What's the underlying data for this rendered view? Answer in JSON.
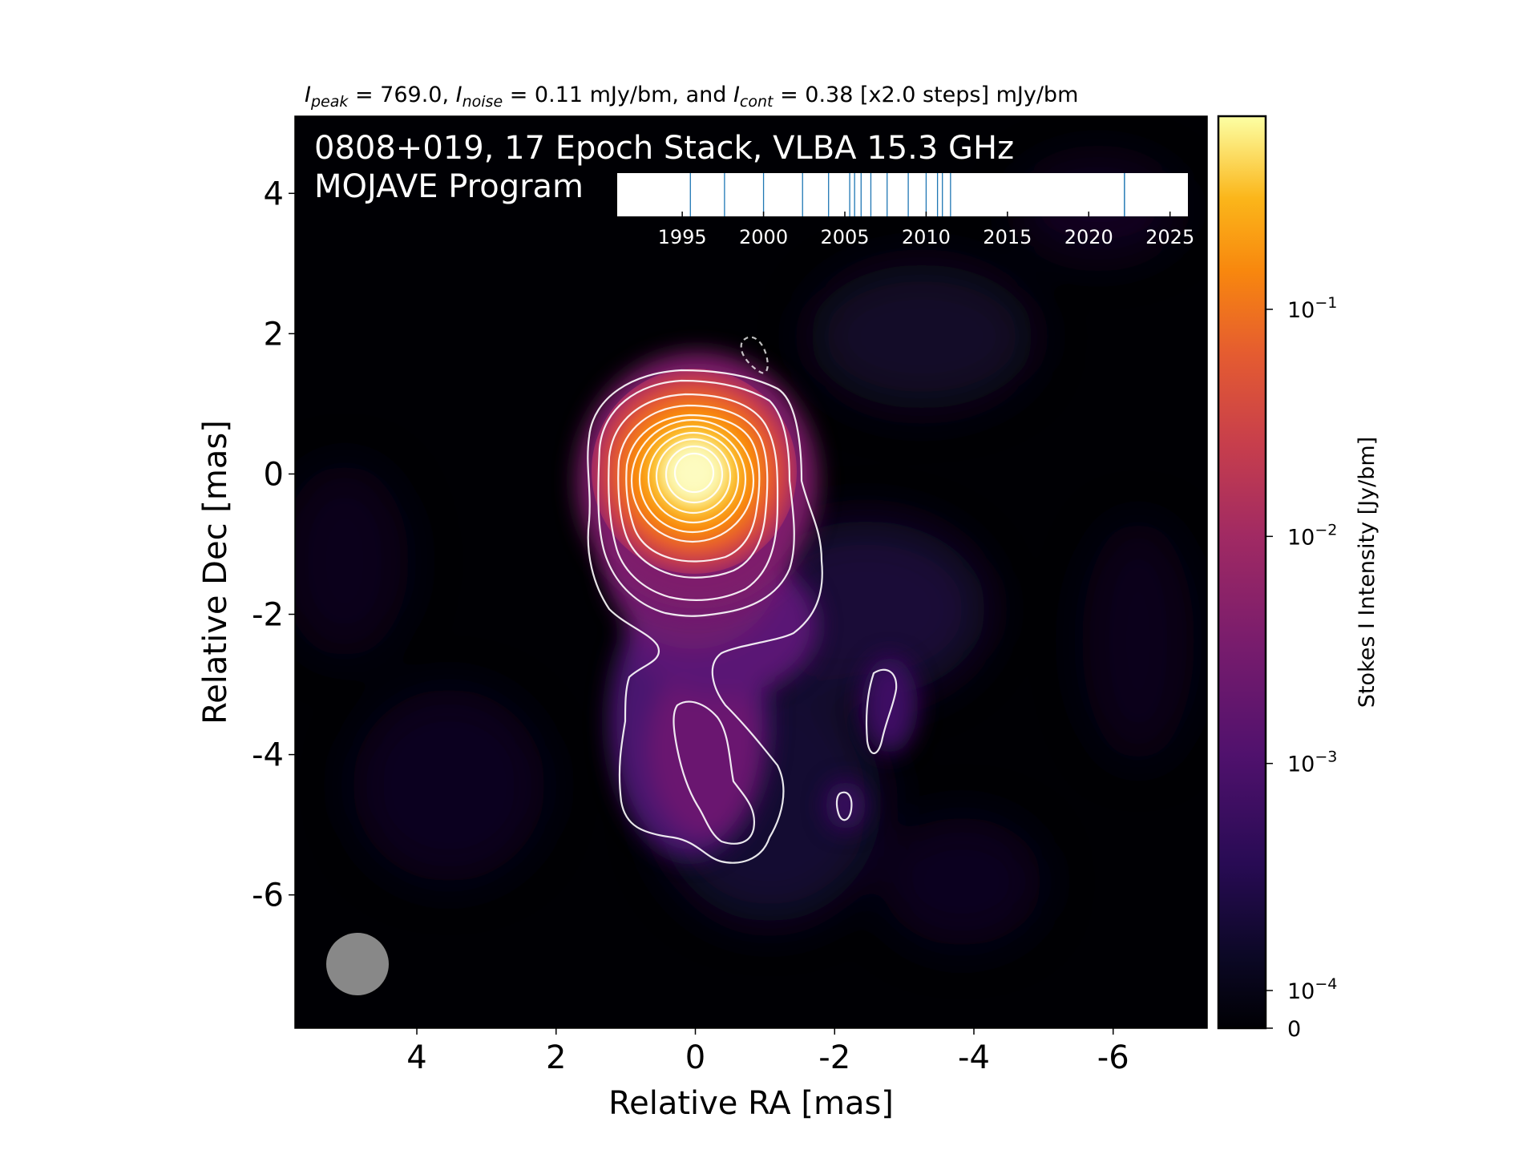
{
  "chart_data": {
    "type": "heatmap",
    "header": {
      "peak_symbol": "I",
      "peak_sub": "peak",
      "peak_text": " = 769.0, ",
      "noise_symbol": "I",
      "noise_sub": "noise",
      "noise_text": " = 0.11 mJy/bm, and ",
      "cont_symbol": "I",
      "cont_sub": "cont",
      "cont_text": " = 0.38 [x2.0 steps] mJy/bm"
    },
    "title_line1": "0808+019, 17 Epoch Stack, VLBA 15.3 GHz",
    "title_line2": "MOJAVE Program",
    "xlabel": "Relative RA [mas]",
    "ylabel": "Relative Dec [mas]",
    "xlim": [
      5.75,
      -7.35
    ],
    "ylim": [
      -7.9,
      5.1
    ],
    "x_ticks": [
      4,
      2,
      0,
      -2,
      -4,
      -6
    ],
    "x_tick_labels": [
      "4",
      "2",
      "0",
      "-2",
      "-4",
      "-6"
    ],
    "y_ticks": [
      4,
      2,
      0,
      -2,
      -4,
      -6
    ],
    "y_tick_labels": [
      "4",
      "2",
      "0",
      "-2",
      "-4",
      "-6"
    ],
    "colorbar": {
      "label": "Stokes I Intensity [Jy/bm]",
      "colormap": "inferno",
      "scale": "log",
      "ticks": [
        {
          "value": 0.1,
          "label_base": "10",
          "label_exp": "−1"
        },
        {
          "value": 0.01,
          "label_base": "10",
          "label_exp": "−2"
        },
        {
          "value": 0.001,
          "label_base": "10",
          "label_exp": "−3"
        },
        {
          "value": 0.0001,
          "label_base": "10",
          "label_exp": "−4"
        },
        {
          "value": 0,
          "label_base": "0",
          "label_exp": ""
        }
      ]
    },
    "epoch_timeline": {
      "xlim": [
        1991.0,
        2026.1
      ],
      "tick_labels": [
        "1995",
        "2000",
        "2005",
        "2010",
        "2015",
        "2020",
        "2025"
      ],
      "tick_values": [
        1995,
        2000,
        2005,
        2010,
        2015,
        2020,
        2025
      ],
      "epochs": [
        1995.5,
        1997.6,
        2000.0,
        2002.4,
        2004.0,
        2005.3,
        2005.6,
        2006.0,
        2006.6,
        2007.6,
        2008.9,
        2010.0,
        2010.7,
        2011.0,
        2011.5,
        2022.2,
        2022.2
      ],
      "line_color": "#1f77b4"
    },
    "components": [
      {
        "ra": 0.0,
        "dec": 0.0,
        "peak_jy": 0.769
      },
      {
        "ra": 0.5,
        "dec": -2.2,
        "peak_jy": 0.004
      },
      {
        "ra": 0.35,
        "dec": -3.9,
        "peak_jy": 0.0012
      },
      {
        "ra": -0.6,
        "dec": -4.8,
        "peak_jy": 0.0009
      },
      {
        "ra": -2.9,
        "dec": -3.6,
        "peak_jy": 0.0005
      }
    ],
    "contour_levels_mjy": [
      0.38,
      0.76,
      1.52,
      3.04,
      6.08,
      12.16,
      24.32,
      48.64,
      97.28,
      194.56,
      389.12
    ],
    "beam": {
      "major_mas": 0.9,
      "minor_mas": 0.9,
      "pa_deg": 0,
      "color": "#888888"
    }
  }
}
